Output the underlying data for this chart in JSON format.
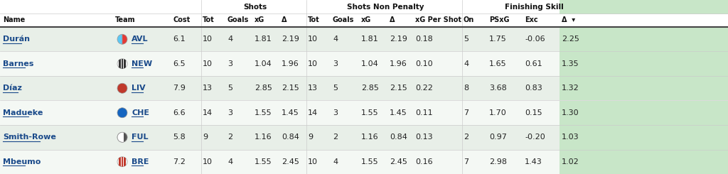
{
  "rows": [
    {
      "name": "Durán",
      "team": "AVL",
      "team_style": "half_blue_red",
      "cost": "6.1",
      "shots_tot": "10",
      "shots_goals": "4",
      "shots_xg": "1.81",
      "shots_delta": "2.19",
      "snp_tot": "10",
      "snp_goals": "4",
      "snp_xg": "1.81",
      "snp_delta": "2.19",
      "xg_per_shot": "0.18",
      "on": "5",
      "psxg": "1.75",
      "exc": "-0.06",
      "fin_delta": "2.25"
    },
    {
      "name": "Barnes",
      "team": "NEW",
      "team_style": "stripes_black",
      "cost": "6.5",
      "shots_tot": "10",
      "shots_goals": "3",
      "shots_xg": "1.04",
      "shots_delta": "1.96",
      "snp_tot": "10",
      "snp_goals": "3",
      "snp_xg": "1.04",
      "snp_delta": "1.96",
      "xg_per_shot": "0.10",
      "on": "4",
      "psxg": "1.65",
      "exc": "0.61",
      "fin_delta": "1.35"
    },
    {
      "name": "Díaz",
      "team": "LIV",
      "team_style": "solid_red",
      "cost": "7.9",
      "shots_tot": "13",
      "shots_goals": "5",
      "shots_xg": "2.85",
      "shots_delta": "2.15",
      "snp_tot": "13",
      "snp_goals": "5",
      "snp_xg": "2.85",
      "snp_delta": "2.15",
      "xg_per_shot": "0.22",
      "on": "8",
      "psxg": "3.68",
      "exc": "0.83",
      "fin_delta": "1.32"
    },
    {
      "name": "Madueke",
      "team": "CHE",
      "team_style": "solid_blue",
      "cost": "6.6",
      "shots_tot": "14",
      "shots_goals": "3",
      "shots_xg": "1.55",
      "shots_delta": "1.45",
      "snp_tot": "14",
      "snp_goals": "3",
      "snp_xg": "1.55",
      "snp_delta": "1.45",
      "xg_per_shot": "0.11",
      "on": "7",
      "psxg": "1.70",
      "exc": "0.15",
      "fin_delta": "1.30"
    },
    {
      "name": "Smith-Rowe",
      "team": "FUL",
      "team_style": "half_white_black",
      "cost": "5.8",
      "shots_tot": "9",
      "shots_goals": "2",
      "shots_xg": "1.16",
      "shots_delta": "0.84",
      "snp_tot": "9",
      "snp_goals": "2",
      "snp_xg": "1.16",
      "snp_delta": "0.84",
      "xg_per_shot": "0.13",
      "on": "2",
      "psxg": "0.97",
      "exc": "-0.20",
      "fin_delta": "1.03"
    },
    {
      "name": "Mbeumo",
      "team": "BRE",
      "team_style": "stripes_red",
      "cost": "7.2",
      "shots_tot": "10",
      "shots_goals": "4",
      "shots_xg": "1.55",
      "shots_delta": "2.45",
      "snp_tot": "10",
      "snp_goals": "4",
      "snp_xg": "1.55",
      "snp_delta": "2.45",
      "xg_per_shot": "0.16",
      "on": "7",
      "psxg": "2.98",
      "exc": "1.43",
      "fin_delta": "1.02"
    }
  ],
  "col_headers": [
    "Name",
    "Team",
    "Cost",
    "Tot",
    "Goals",
    "xG",
    "Δ",
    "Tot",
    "Goals",
    "xG",
    "Δ",
    "xG Per Shot",
    "On",
    "PSxG",
    "Exc",
    "Δ"
  ],
  "group_labels": [
    "Shots",
    "Shots Non Penalty",
    "Finishing Skill"
  ],
  "bg_color": "#ffffff",
  "row_alt_color": "#e8efe8",
  "row_plain_color": "#f4f8f4",
  "header_bg": "#ffffff",
  "text_color": "#222222",
  "name_color": "#1a4a8a",
  "team_color": "#1a4a8a",
  "header_text_color": "#111111",
  "delta_col_bg": "#c8e6c8",
  "thick_border_color": "#444444",
  "sep_color": "#cccccc"
}
